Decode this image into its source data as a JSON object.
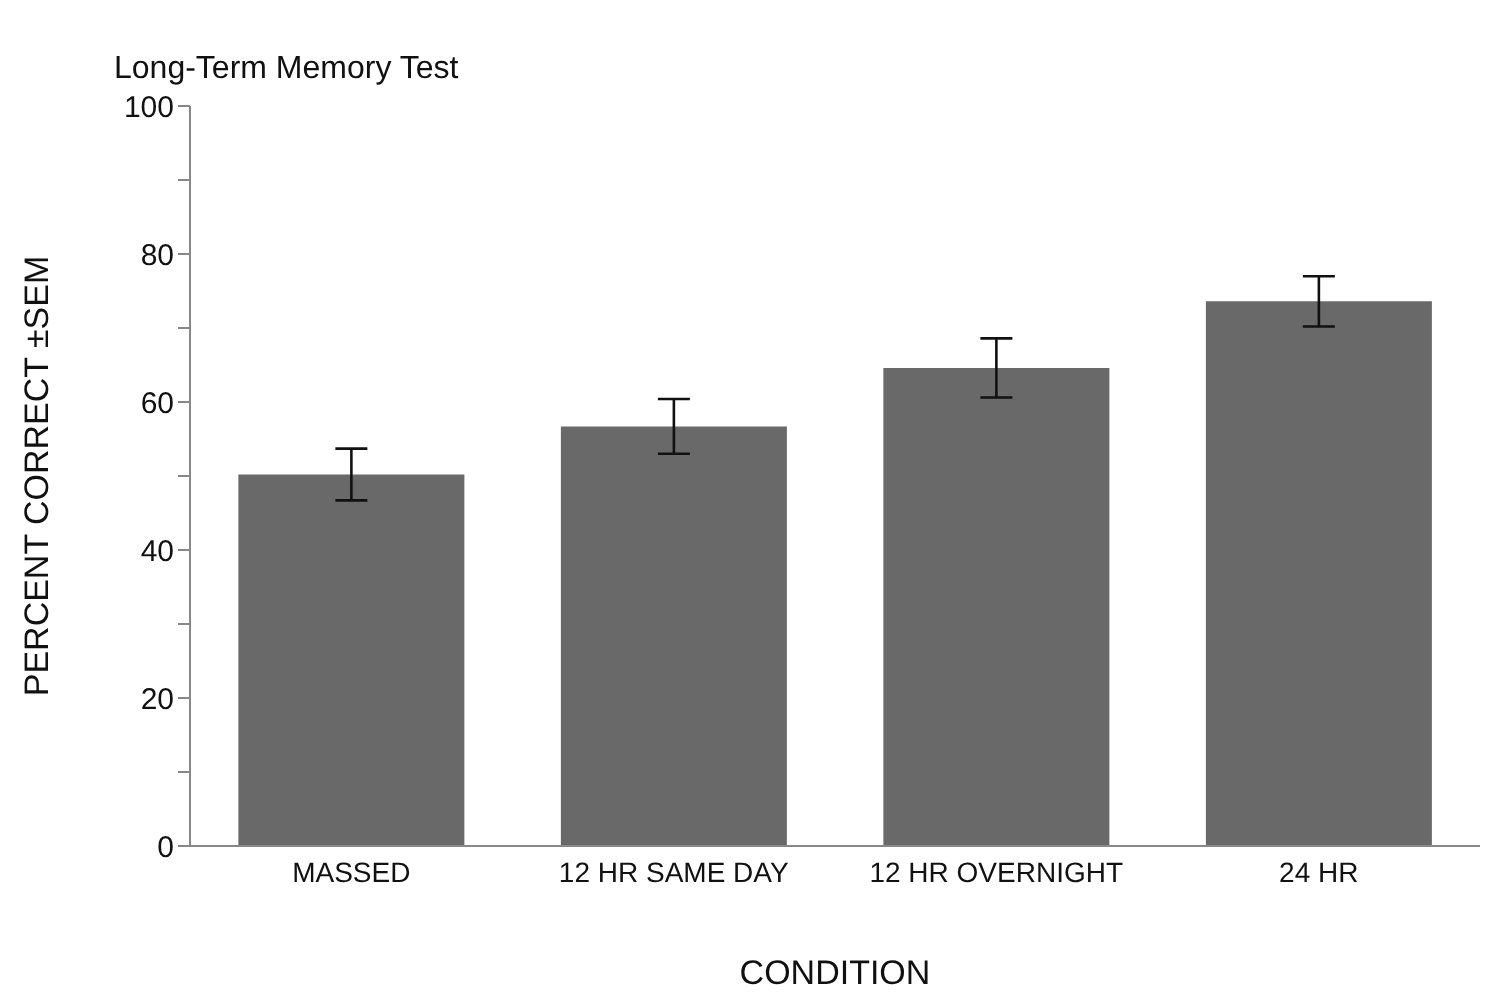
{
  "chart_data": {
    "type": "bar",
    "title": "Long-Term Memory Test",
    "xlabel": "CONDITION",
    "ylabel": "PERCENT CORRECT ±SEM",
    "categories": [
      "MASSED",
      "12 HR SAME DAY",
      "12 HR OVERNIGHT",
      "24 HR"
    ],
    "values": [
      50.2,
      56.7,
      64.6,
      73.6
    ],
    "errors": [
      3.5,
      3.7,
      4.0,
      3.4
    ],
    "color": "#696969",
    "ylim": [
      0,
      100
    ],
    "yticks": [
      0,
      {
        "value": 10,
        "label": null
      },
      20,
      {
        "value": 30,
        "label": null
      },
      40,
      {
        "value": 50,
        "label": null
      },
      60,
      {
        "value": 70,
        "label": null
      },
      80,
      {
        "value": 90,
        "label": null
      },
      100
    ],
    "grid": false,
    "legend": false
  }
}
